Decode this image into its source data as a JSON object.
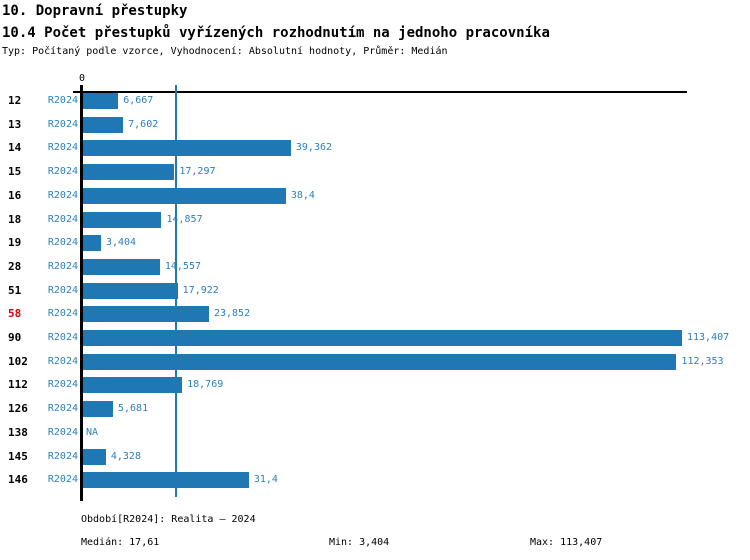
{
  "header": {
    "title": "10. Dopravní přestupky",
    "subtitle": "10.4 Počet přestupků vyřízených rozhodnutím na jednoho pracovníka",
    "meta": "Typ: Počítaný podle vzorce, Vyhodnocení: Absolutní hodnoty, Průměr: Medián"
  },
  "chart_data": {
    "type": "bar",
    "orientation": "horizontal",
    "series_label": "R2024",
    "categories": [
      "12",
      "13",
      "14",
      "15",
      "16",
      "18",
      "19",
      "28",
      "51",
      "58",
      "90",
      "102",
      "112",
      "126",
      "138",
      "145",
      "146"
    ],
    "values": [
      6.667,
      7.602,
      39.362,
      17.297,
      38.4,
      14.857,
      3.404,
      14.557,
      17.922,
      23.852,
      113.407,
      112.353,
      18.769,
      5.681,
      null,
      4.328,
      31.4
    ],
    "value_labels": [
      "6,667",
      "7,602",
      "39,362",
      "17,297",
      "38,4",
      "14,857",
      "3,404",
      "14,557",
      "17,922",
      "23,852",
      "113,407",
      "112,353",
      "18,769",
      "5,681",
      "NA",
      "4,328",
      "31,4"
    ],
    "highlighted_category": "58",
    "xlim": [
      0,
      113.407
    ],
    "zero_tick_label": "0",
    "grid": "off",
    "median_reference": {
      "value": 17.61,
      "label": "17,61"
    },
    "colors": {
      "bar": "#1f77b4",
      "blue_text": "#2b7fba",
      "median_line": "#1f77b4",
      "highlight_text": "#dd0000",
      "axis": "#000000"
    }
  },
  "footer": {
    "period": "Období[R2024]: Realita – 2024",
    "median": "Medián: 17,61",
    "min": "Min: 3,404",
    "max": "Max: 113,407"
  }
}
